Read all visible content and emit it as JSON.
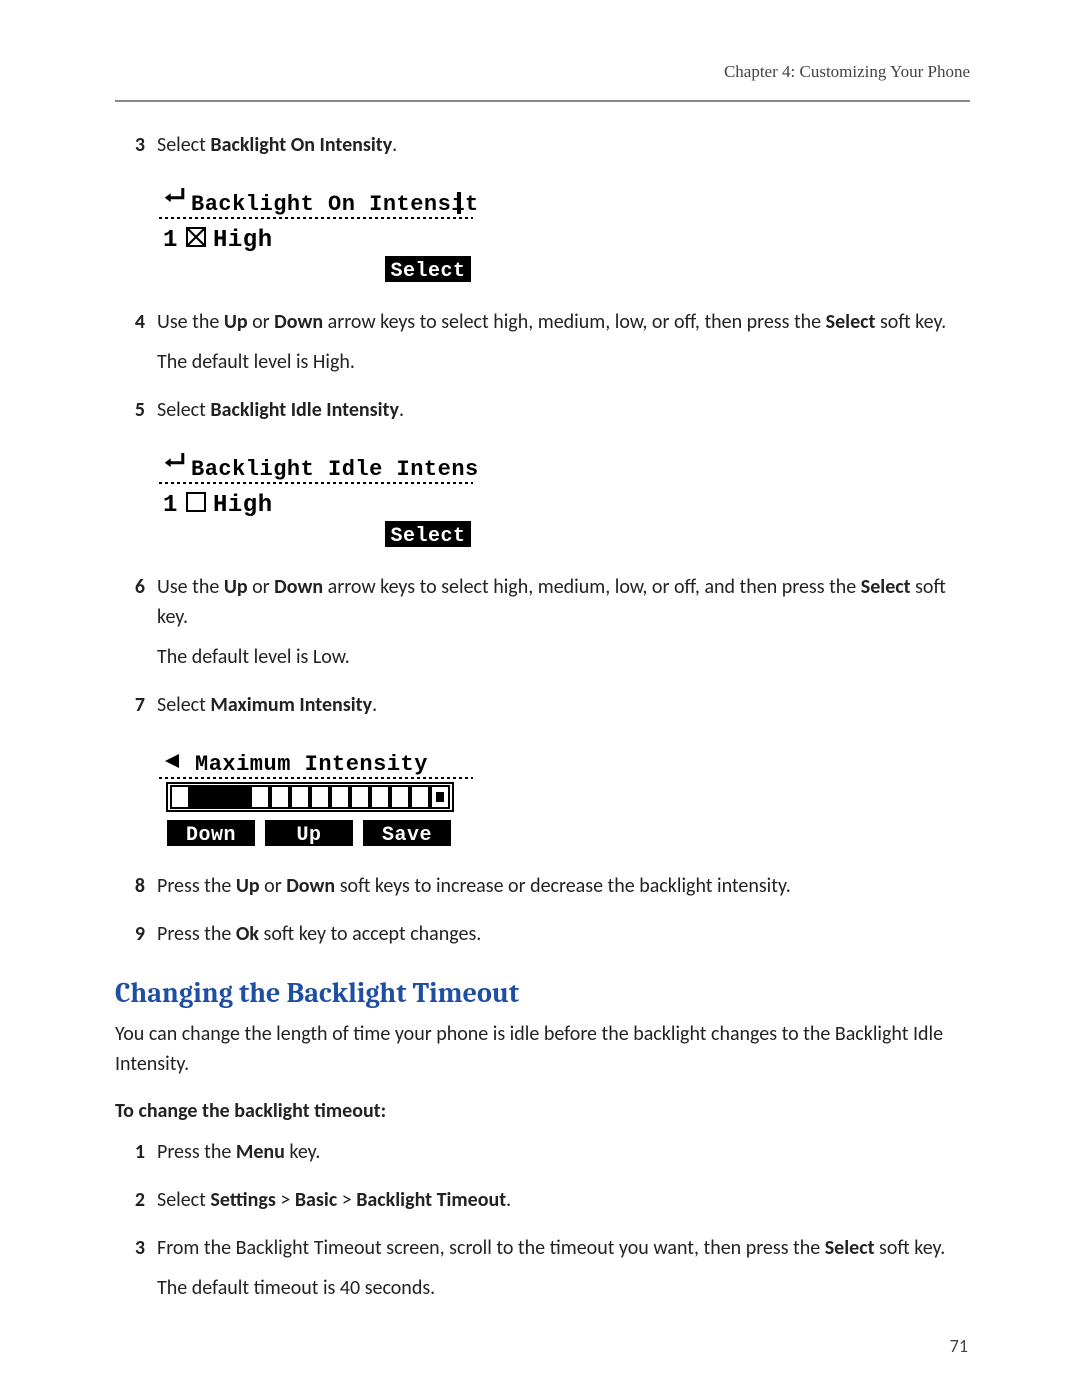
{
  "header": {
    "running": "Chapter 4: Customizing Your Phone"
  },
  "page_number": "71",
  "stepsA": [
    {
      "n": "3",
      "pre": "Select ",
      "bold": "Backlight On Intensity",
      "post": ".",
      "sub": null
    },
    {
      "n": "4",
      "parts": [
        {
          "t": "Use the "
        },
        {
          "t": "Up",
          "b": true
        },
        {
          "t": " or "
        },
        {
          "t": "Down",
          "b": true
        },
        {
          "t": " arrow keys to select high, medium, low, or off, then press the "
        },
        {
          "t": "Select",
          "b": true
        },
        {
          "t": " soft key."
        }
      ],
      "sub": "The default level is High."
    },
    {
      "n": "5",
      "pre": "Select ",
      "bold": "Backlight Idle Intensity",
      "post": ".",
      "sub": null
    },
    {
      "n": "6",
      "parts": [
        {
          "t": "Use the "
        },
        {
          "t": "Up",
          "b": true
        },
        {
          "t": " or "
        },
        {
          "t": "Down",
          "b": true
        },
        {
          "t": " arrow keys to select high, medium, low, or off, and then press the "
        },
        {
          "t": "Select",
          "b": true
        },
        {
          "t": " soft key."
        }
      ],
      "sub": "The default level is Low."
    },
    {
      "n": "7",
      "pre": "Select ",
      "bold": "Maximum Intensity",
      "post": ".",
      "sub": null
    },
    {
      "n": "8",
      "parts": [
        {
          "t": "Press the "
        },
        {
          "t": "Up",
          "b": true
        },
        {
          "t": " or "
        },
        {
          "t": "Down",
          "b": true
        },
        {
          "t": " soft keys to increase or decrease the backlight intensity."
        }
      ],
      "sub": null
    },
    {
      "n": "9",
      "parts": [
        {
          "t": "Press the "
        },
        {
          "t": "Ok",
          "b": true
        },
        {
          "t": " soft key to accept changes."
        }
      ],
      "sub": null
    }
  ],
  "lcd1": {
    "title": "Backlight On Intensity",
    "row_num": "1",
    "row_label": "High",
    "checked": true,
    "softkey": "Select",
    "back_arrow": true,
    "cursor": true,
    "font_family": "pixel",
    "colors": {
      "fg": "#000000",
      "bg": "#ffffff"
    }
  },
  "lcd2": {
    "title": "Backlight Idle Intensity",
    "row_num": "1",
    "row_label": "High",
    "checked": false,
    "softkey": "Select",
    "back_arrow": true,
    "cursor": false,
    "font_family": "pixel",
    "colors": {
      "fg": "#000000",
      "bg": "#ffffff"
    }
  },
  "lcd3": {
    "title": "Maximum Intensity",
    "back_arrow_solid": true,
    "slider": {
      "total": 14,
      "filled_start": 1,
      "filled_end": 3,
      "marker_index": 13
    },
    "softkeys": [
      "Down",
      "Up",
      "Save"
    ],
    "colors": {
      "fg": "#000000",
      "bg": "#ffffff"
    }
  },
  "section": {
    "heading": "Changing the Backlight Timeout",
    "body": "You can change the length of time your phone is idle before the backlight changes to the Backlight Idle Intensity.",
    "lead": "To change the backlight timeout:",
    "steps": [
      {
        "n": "1",
        "parts": [
          {
            "t": "Press the "
          },
          {
            "t": "Menu",
            "b": true
          },
          {
            "t": " key."
          }
        ]
      },
      {
        "n": "2",
        "parts": [
          {
            "t": "Select "
          },
          {
            "t": "Settings",
            "b": true
          },
          {
            "t": " > "
          },
          {
            "t": "Basic",
            "b": true
          },
          {
            "t": " > "
          },
          {
            "t": "Backlight Timeout",
            "b": true
          },
          {
            "t": "."
          }
        ]
      },
      {
        "n": "3",
        "parts": [
          {
            "t": "From the Backlight Timeout screen, scroll to the timeout you want, then press the "
          },
          {
            "t": "Select",
            "b": true
          },
          {
            "t": " soft key."
          }
        ],
        "sub": "The default timeout is 40 seconds."
      }
    ]
  }
}
